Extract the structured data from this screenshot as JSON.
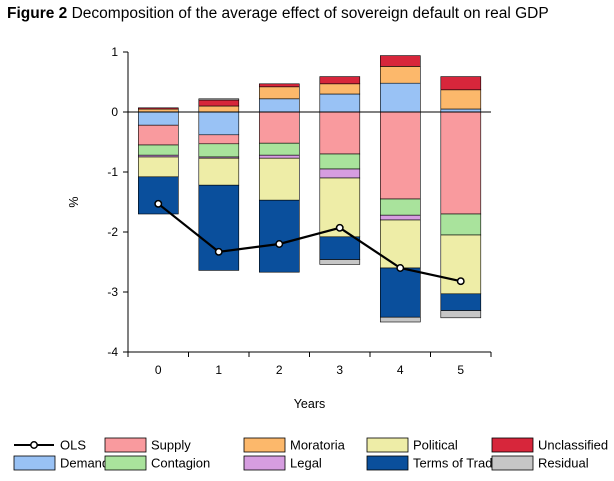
{
  "figure": {
    "label": "Figure 2",
    "title": "Decomposition of the average effect of sovereign default on real GDP"
  },
  "chart_data": {
    "type": "bar",
    "stacked": true,
    "xlabel": "Years",
    "ylabel": "%",
    "categories": [
      "0",
      "1",
      "2",
      "3",
      "4",
      "5"
    ],
    "ylim": [
      -4,
      1
    ],
    "yticks": [
      1,
      0,
      -1,
      -2,
      -3,
      -4
    ],
    "grid": false,
    "zero_line": true,
    "legend_position": "bottom",
    "series": [
      {
        "name": "Demand",
        "color": "#99C2F5",
        "values": [
          -0.22,
          -0.38,
          0.22,
          0.3,
          0.48,
          0.05
        ]
      },
      {
        "name": "Supply",
        "color": "#F99A9E",
        "values": [
          -0.33,
          -0.15,
          -0.52,
          -0.7,
          -1.45,
          -1.7
        ]
      },
      {
        "name": "Contagion",
        "color": "#A9E39C",
        "values": [
          -0.17,
          -0.22,
          -0.2,
          -0.25,
          -0.27,
          -0.35
        ]
      },
      {
        "name": "Moratoria",
        "color": "#FCB86B",
        "values": [
          0.05,
          0.1,
          0.2,
          0.17,
          0.28,
          0.32
        ]
      },
      {
        "name": "Legal",
        "color": "#D69DE0",
        "values": [
          -0.03,
          -0.02,
          -0.05,
          -0.15,
          -0.08,
          0.0
        ]
      },
      {
        "name": "Political",
        "color": "#EEEDA7",
        "values": [
          -0.33,
          -0.45,
          -0.7,
          -0.98,
          -0.8,
          -0.98
        ]
      },
      {
        "name": "Terms of Trade",
        "color": "#0A4F9C",
        "values": [
          -0.62,
          -1.42,
          -1.2,
          -0.38,
          -0.82,
          -0.28
        ]
      },
      {
        "name": "Unclassified",
        "color": "#D7263B",
        "values": [
          0.02,
          0.1,
          0.05,
          0.12,
          0.18,
          0.22
        ]
      },
      {
        "name": "Residual",
        "color": "#C6C6C6",
        "values": [
          0.0,
          0.02,
          0.0,
          -0.08,
          -0.08,
          -0.12
        ]
      }
    ],
    "line_series": {
      "name": "OLS",
      "color": "#000000",
      "values": [
        -1.53,
        -2.33,
        -2.2,
        -1.93,
        -2.6,
        -2.82
      ]
    }
  }
}
